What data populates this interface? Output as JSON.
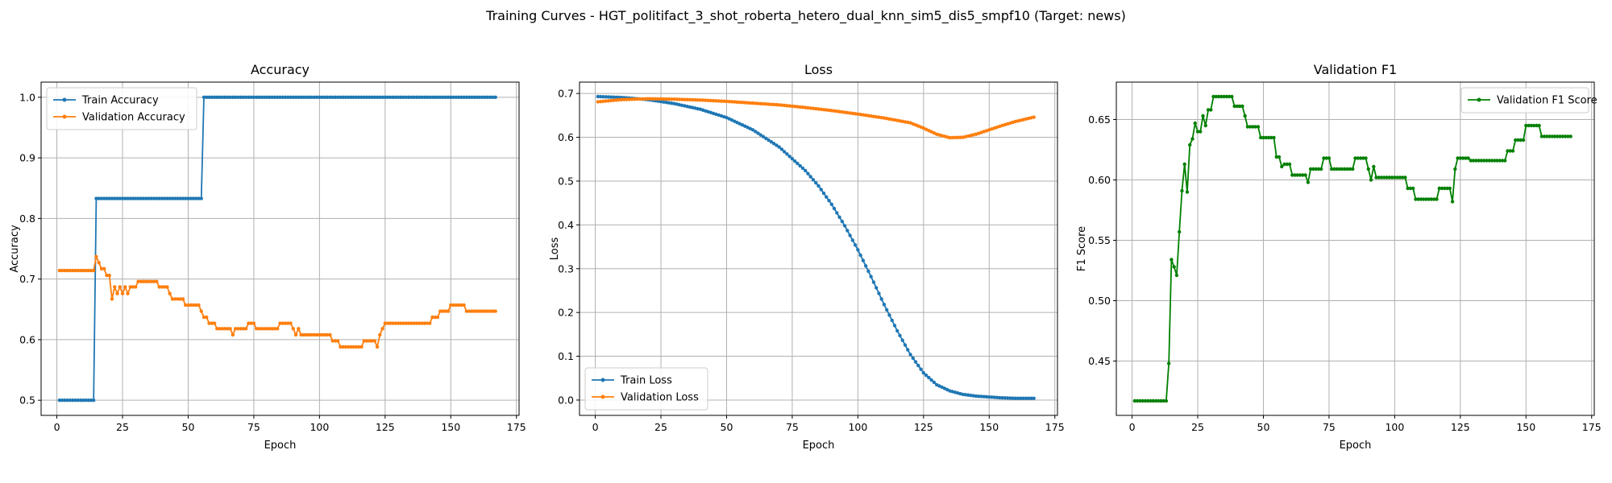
{
  "figure_title": "Training Curves - HGT_politifact_3_shot_roberta_hetero_dual_knn_sim5_dis5_smpf10 (Target: news)",
  "colors": {
    "train": "#1f77b4",
    "validation": "#ff7f0e",
    "f1": "#008000"
  },
  "chart_data": [
    {
      "type": "line",
      "title": "Accuracy",
      "xlabel": "Epoch",
      "ylabel": "Accuracy",
      "xlim": [
        -6,
        176
      ],
      "ylim": [
        0.475,
        1.025
      ],
      "xticks": [
        0,
        25,
        50,
        75,
        100,
        125,
        150,
        175
      ],
      "yticks": [
        0.5,
        0.6,
        0.7,
        0.8,
        0.9,
        1.0
      ],
      "ytick_labels": [
        "0.5",
        "0.6",
        "0.7",
        "0.8",
        "0.9",
        "1.0"
      ],
      "grid": true,
      "legend_loc": "upper-left",
      "series": [
        {
          "name": "Train Accuracy",
          "color_key": "train",
          "values": [
            [
              1,
              0.5
            ],
            [
              14,
              0.5
            ],
            [
              15,
              0.833
            ],
            [
              55,
              0.833
            ],
            [
              56,
              1.0
            ],
            [
              167,
              1.0
            ]
          ]
        },
        {
          "name": "Validation Accuracy",
          "color_key": "validation",
          "values": [
            [
              1,
              0.714
            ],
            [
              14,
              0.714
            ],
            [
              15,
              0.737
            ],
            [
              16,
              0.727
            ],
            [
              17,
              0.717
            ],
            [
              18,
              0.717
            ],
            [
              19,
              0.706
            ],
            [
              20,
              0.706
            ],
            [
              21,
              0.667
            ],
            [
              22,
              0.687
            ],
            [
              23,
              0.676
            ],
            [
              24,
              0.687
            ],
            [
              25,
              0.676
            ],
            [
              26,
              0.687
            ],
            [
              27,
              0.676
            ],
            [
              28,
              0.687
            ],
            [
              30,
              0.687
            ],
            [
              31,
              0.696
            ],
            [
              38,
              0.696
            ],
            [
              39,
              0.687
            ],
            [
              42,
              0.687
            ],
            [
              43,
              0.676
            ],
            [
              44,
              0.667
            ],
            [
              48,
              0.667
            ],
            [
              49,
              0.657
            ],
            [
              54,
              0.657
            ],
            [
              55,
              0.647
            ],
            [
              56,
              0.637
            ],
            [
              57,
              0.637
            ],
            [
              58,
              0.627
            ],
            [
              60,
              0.627
            ],
            [
              61,
              0.618
            ],
            [
              66,
              0.618
            ],
            [
              67,
              0.608
            ],
            [
              68,
              0.618
            ],
            [
              72,
              0.618
            ],
            [
              73,
              0.627
            ],
            [
              75,
              0.627
            ],
            [
              76,
              0.618
            ],
            [
              84,
              0.618
            ],
            [
              85,
              0.627
            ],
            [
              89,
              0.627
            ],
            [
              90,
              0.618
            ],
            [
              91,
              0.608
            ],
            [
              92,
              0.618
            ],
            [
              93,
              0.608
            ],
            [
              104,
              0.608
            ],
            [
              105,
              0.598
            ],
            [
              107,
              0.598
            ],
            [
              108,
              0.588
            ],
            [
              116,
              0.588
            ],
            [
              117,
              0.598
            ],
            [
              121,
              0.598
            ],
            [
              122,
              0.588
            ],
            [
              123,
              0.608
            ],
            [
              124,
              0.618
            ],
            [
              125,
              0.627
            ],
            [
              142,
              0.627
            ],
            [
              143,
              0.637
            ],
            [
              145,
              0.637
            ],
            [
              146,
              0.647
            ],
            [
              149,
              0.647
            ],
            [
              150,
              0.657
            ],
            [
              155,
              0.657
            ],
            [
              156,
              0.647
            ],
            [
              167,
              0.647
            ]
          ]
        }
      ]
    },
    {
      "type": "line",
      "title": "Loss",
      "xlabel": "Epoch",
      "ylabel": "Loss",
      "xlim": [
        -6,
        176
      ],
      "ylim": [
        -0.035,
        0.726
      ],
      "xticks": [
        0,
        25,
        50,
        75,
        100,
        125,
        150,
        175
      ],
      "yticks": [
        0,
        0.1,
        0.2,
        0.3,
        0.4,
        0.5,
        0.6,
        0.7
      ],
      "ytick_labels": [
        "0.0",
        "0.1",
        "0.2",
        "0.3",
        "0.4",
        "0.5",
        "0.6",
        "0.7"
      ],
      "grid": true,
      "legend_loc": "lower-left",
      "series": [
        {
          "name": "Train Loss",
          "color_key": "train",
          "values": [
            [
              1,
              0.693
            ],
            [
              10,
              0.691
            ],
            [
              20,
              0.686
            ],
            [
              30,
              0.677
            ],
            [
              40,
              0.664
            ],
            [
              50,
              0.645
            ],
            [
              60,
              0.617
            ],
            [
              70,
              0.578
            ],
            [
              80,
              0.524
            ],
            [
              85,
              0.489
            ],
            [
              90,
              0.447
            ],
            [
              95,
              0.398
            ],
            [
              100,
              0.343
            ],
            [
              105,
              0.282
            ],
            [
              110,
              0.218
            ],
            [
              115,
              0.158
            ],
            [
              120,
              0.104
            ],
            [
              125,
              0.062
            ],
            [
              130,
              0.035
            ],
            [
              135,
              0.021
            ],
            [
              140,
              0.013
            ],
            [
              145,
              0.009
            ],
            [
              150,
              0.007
            ],
            [
              155,
              0.005
            ],
            [
              160,
              0.004
            ],
            [
              167,
              0.004
            ]
          ]
        },
        {
          "name": "Validation Loss",
          "color_key": "validation",
          "values": [
            [
              1,
              0.681
            ],
            [
              10,
              0.686
            ],
            [
              20,
              0.688
            ],
            [
              30,
              0.687
            ],
            [
              40,
              0.685
            ],
            [
              50,
              0.682
            ],
            [
              60,
              0.678
            ],
            [
              70,
              0.674
            ],
            [
              80,
              0.668
            ],
            [
              90,
              0.661
            ],
            [
              100,
              0.653
            ],
            [
              110,
              0.644
            ],
            [
              120,
              0.633
            ],
            [
              125,
              0.621
            ],
            [
              130,
              0.607
            ],
            [
              135,
              0.599
            ],
            [
              140,
              0.6
            ],
            [
              145,
              0.607
            ],
            [
              150,
              0.617
            ],
            [
              155,
              0.627
            ],
            [
              160,
              0.636
            ],
            [
              167,
              0.646
            ]
          ]
        }
      ]
    },
    {
      "type": "line",
      "title": "Validation F1",
      "xlabel": "Epoch",
      "ylabel": "F1 Score",
      "xlim": [
        -6,
        176
      ],
      "ylim": [
        0.405,
        0.681
      ],
      "xticks": [
        0,
        25,
        50,
        75,
        100,
        125,
        150,
        175
      ],
      "yticks": [
        0.45,
        0.5,
        0.55,
        0.6,
        0.65
      ],
      "ytick_labels": [
        "0.45",
        "0.50",
        "0.55",
        "0.60",
        "0.65"
      ],
      "grid": true,
      "legend_loc": "upper-right",
      "series": [
        {
          "name": "Validation F1 Score",
          "color_key": "f1",
          "values": [
            [
              1,
              0.417
            ],
            [
              13,
              0.417
            ],
            [
              14,
              0.448
            ],
            [
              15,
              0.534
            ],
            [
              16,
              0.528
            ],
            [
              17,
              0.521
            ],
            [
              18,
              0.557
            ],
            [
              19,
              0.591
            ],
            [
              20,
              0.613
            ],
            [
              21,
              0.59
            ],
            [
              22,
              0.629
            ],
            [
              23,
              0.634
            ],
            [
              24,
              0.647
            ],
            [
              25,
              0.64
            ],
            [
              26,
              0.64
            ],
            [
              27,
              0.653
            ],
            [
              28,
              0.645
            ],
            [
              29,
              0.658
            ],
            [
              30,
              0.658
            ],
            [
              31,
              0.669
            ],
            [
              38,
              0.669
            ],
            [
              39,
              0.661
            ],
            [
              42,
              0.661
            ],
            [
              43,
              0.653
            ],
            [
              44,
              0.644
            ],
            [
              48,
              0.644
            ],
            [
              49,
              0.635
            ],
            [
              54,
              0.635
            ],
            [
              55,
              0.619
            ],
            [
              56,
              0.619
            ],
            [
              57,
              0.611
            ],
            [
              58,
              0.613
            ],
            [
              60,
              0.613
            ],
            [
              61,
              0.604
            ],
            [
              66,
              0.604
            ],
            [
              67,
              0.598
            ],
            [
              68,
              0.609
            ],
            [
              72,
              0.609
            ],
            [
              73,
              0.618
            ],
            [
              75,
              0.618
            ],
            [
              76,
              0.609
            ],
            [
              84,
              0.609
            ],
            [
              85,
              0.618
            ],
            [
              89,
              0.618
            ],
            [
              90,
              0.609
            ],
            [
              91,
              0.6
            ],
            [
              92,
              0.611
            ],
            [
              93,
              0.602
            ],
            [
              104,
              0.602
            ],
            [
              105,
              0.593
            ],
            [
              107,
              0.593
            ],
            [
              108,
              0.584
            ],
            [
              116,
              0.584
            ],
            [
              117,
              0.593
            ],
            [
              121,
              0.593
            ],
            [
              122,
              0.582
            ],
            [
              123,
              0.609
            ],
            [
              124,
              0.618
            ],
            [
              128,
              0.618
            ],
            [
              129,
              0.616
            ],
            [
              142,
              0.616
            ],
            [
              143,
              0.624
            ],
            [
              145,
              0.624
            ],
            [
              146,
              0.633
            ],
            [
              149,
              0.633
            ],
            [
              150,
              0.645
            ],
            [
              155,
              0.645
            ],
            [
              156,
              0.636
            ],
            [
              167,
              0.636
            ]
          ]
        }
      ]
    }
  ]
}
